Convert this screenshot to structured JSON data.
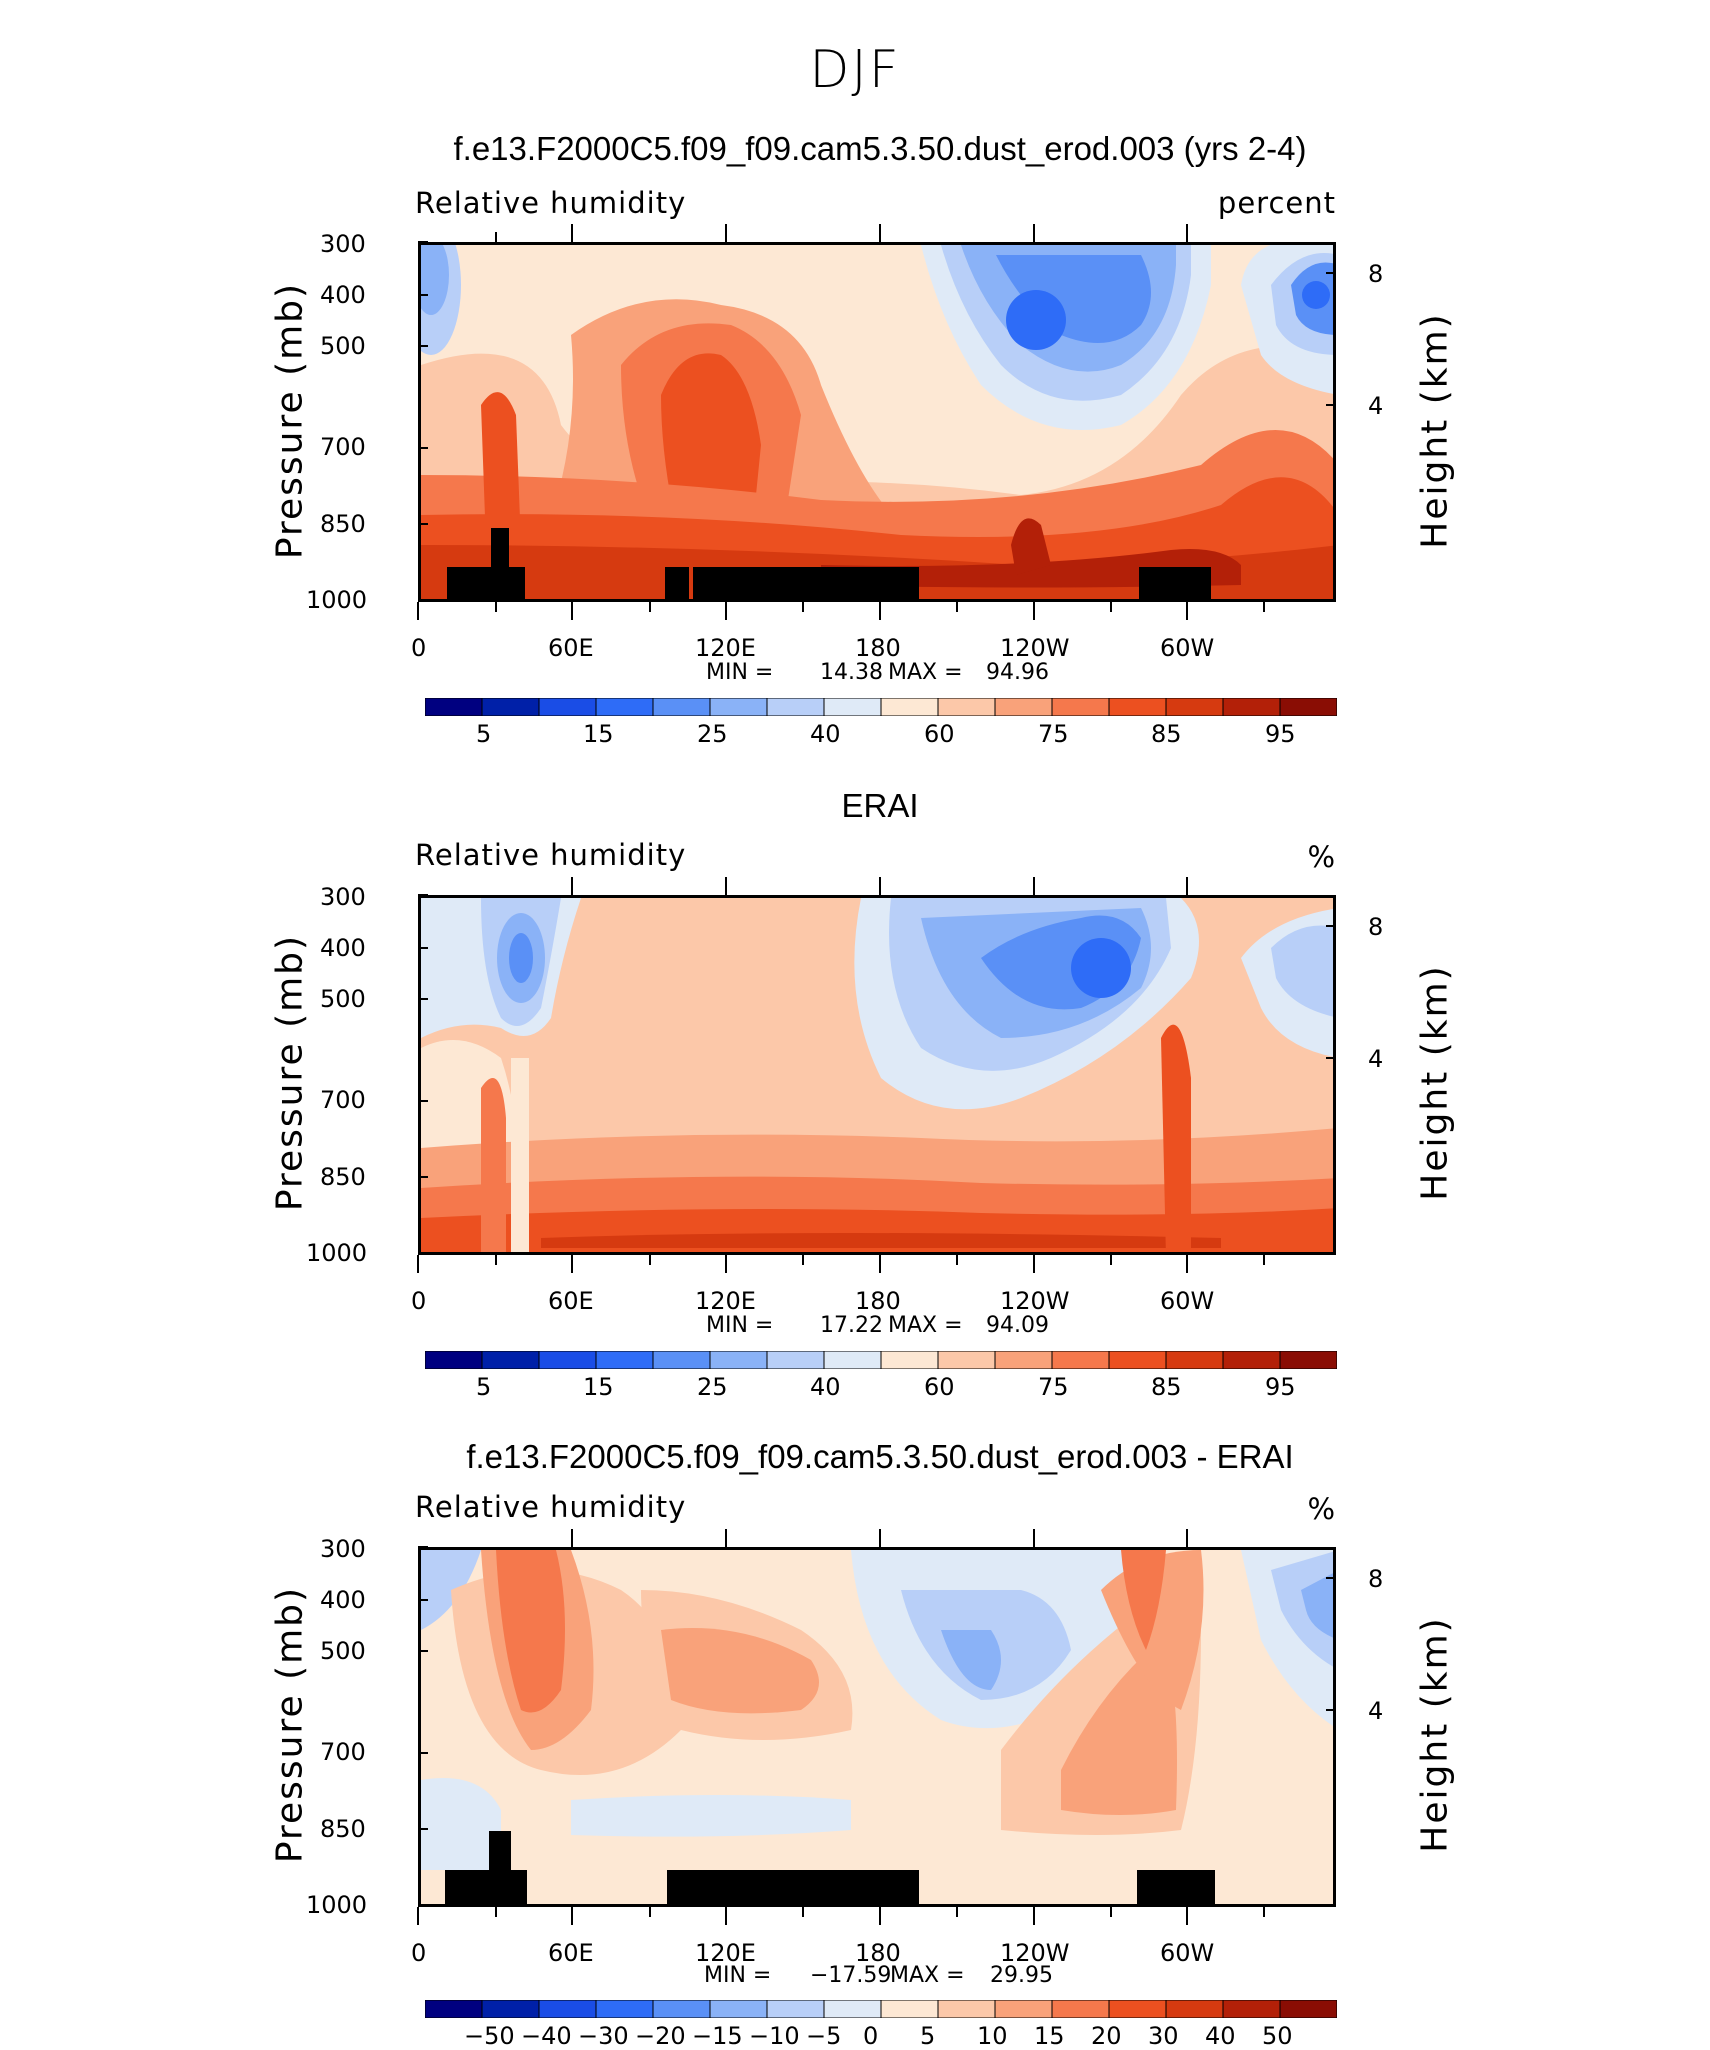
{
  "page_title": "DJF",
  "colors": {
    "blues": [
      "#000080",
      "#0020a8",
      "#1a4de6",
      "#2e6cf7",
      "#5a90f6",
      "#8ab2f7",
      "#b8cff8",
      "#dfeaf7"
    ],
    "reds": [
      "#fde8d4",
      "#fcc8a9",
      "#f9a27a",
      "#f5784c",
      "#ec5020",
      "#d63a10",
      "#b32008",
      "#8a0d04"
    ]
  },
  "chart_data": [
    {
      "type": "heatmap",
      "title": "f.e13.F2000C5.f09_f09.cam5.3.50.dust_erod.003 (yrs 2-4)",
      "variable": "Relative humidity",
      "units": "percent",
      "ylabel": "Pressure (mb)",
      "ylabel_right": "Height (km)",
      "xticks": [
        "0",
        "60E",
        "120E",
        "180",
        "120W",
        "60W"
      ],
      "yticks": [
        "300",
        "400",
        "500",
        "700",
        "850",
        "1000"
      ],
      "yticks_right": [
        "8",
        "4"
      ],
      "min_label": "MIN =",
      "min_value": "14.38",
      "max_label": "MAX =",
      "max_value": "94.96",
      "colorbar_labels": [
        "5",
        "15",
        "25",
        "40",
        "60",
        "75",
        "85",
        "95"
      ],
      "has_topography": true
    },
    {
      "type": "heatmap",
      "title": "ERAI",
      "variable": "Relative humidity",
      "units": "%",
      "ylabel": "Pressure (mb)",
      "ylabel_right": "Height (km)",
      "xticks": [
        "0",
        "60E",
        "120E",
        "180",
        "120W",
        "60W"
      ],
      "yticks": [
        "300",
        "400",
        "500",
        "700",
        "850",
        "1000"
      ],
      "yticks_right": [
        "8",
        "4"
      ],
      "min_label": "MIN =",
      "min_value": "17.22",
      "max_label": "MAX =",
      "max_value": "94.09",
      "colorbar_labels": [
        "5",
        "15",
        "25",
        "40",
        "60",
        "75",
        "85",
        "95"
      ],
      "has_topography": false
    },
    {
      "type": "heatmap",
      "title": "f.e13.F2000C5.f09_f09.cam5.3.50.dust_erod.003 - ERAI",
      "variable": "Relative humidity",
      "units": "%",
      "ylabel": "Pressure (mb)",
      "ylabel_right": "Height (km)",
      "xticks": [
        "0",
        "60E",
        "120E",
        "180",
        "120W",
        "60W"
      ],
      "yticks": [
        "300",
        "400",
        "500",
        "700",
        "850",
        "1000"
      ],
      "yticks_right": [
        "8",
        "4"
      ],
      "min_label": "MIN =",
      "min_value": "−17.59",
      "max_label": "MAX =",
      "max_value": "29.95",
      "colorbar_labels": [
        "−50",
        "−40",
        "−30",
        "−20",
        "−15",
        "−10",
        "−5",
        "0",
        "5",
        "10",
        "15",
        "20",
        "30",
        "40",
        "50"
      ],
      "has_topography": true
    }
  ]
}
